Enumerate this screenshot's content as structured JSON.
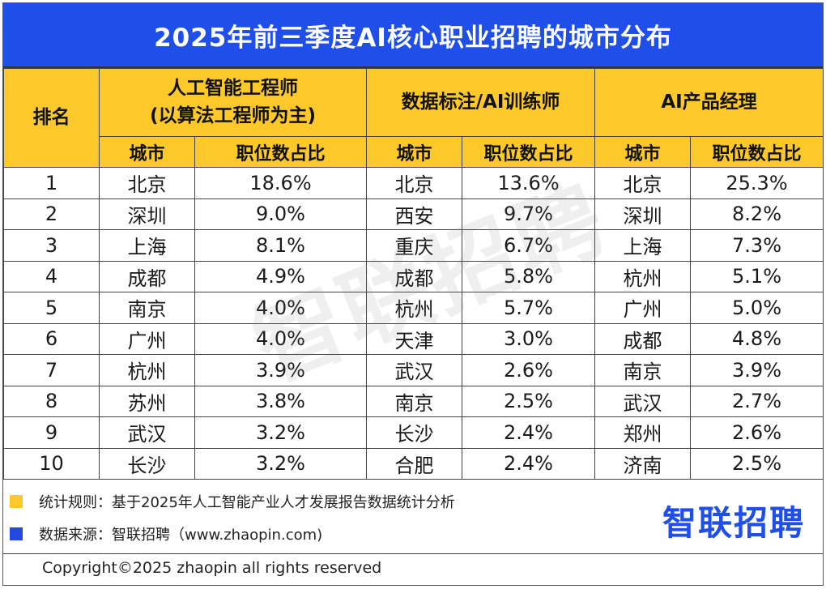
{
  "title": "2025年前三季度AI核心职业招聘的城市分布",
  "header": {
    "rank": "排名",
    "group1": [
      "人工智能工程师",
      "(以算法工程师为主)"
    ],
    "group2": "数据标注/AI训练师",
    "group3": "AI产品经理",
    "city": "城市",
    "share": "职位数占比"
  },
  "rows": [
    {
      "rank": "1",
      "c1": "北京",
      "p1": "18.6%",
      "c2": "北京",
      "p2": "13.6%",
      "c3": "北京",
      "p3": "25.3%"
    },
    {
      "rank": "2",
      "c1": "深圳",
      "p1": "9.0%",
      "c2": "西安",
      "p2": "9.7%",
      "c3": "深圳",
      "p3": "8.2%"
    },
    {
      "rank": "3",
      "c1": "上海",
      "p1": "8.1%",
      "c2": "重庆",
      "p2": "6.7%",
      "c3": "上海",
      "p3": "7.3%"
    },
    {
      "rank": "4",
      "c1": "成都",
      "p1": "4.9%",
      "c2": "成都",
      "p2": "5.8%",
      "c3": "杭州",
      "p3": "5.1%"
    },
    {
      "rank": "5",
      "c1": "南京",
      "p1": "4.0%",
      "c2": "杭州",
      "p2": "5.7%",
      "c3": "广州",
      "p3": "5.0%"
    },
    {
      "rank": "6",
      "c1": "广州",
      "p1": "4.0%",
      "c2": "天津",
      "p2": "3.0%",
      "c3": "成都",
      "p3": "4.8%"
    },
    {
      "rank": "7",
      "c1": "杭州",
      "p1": "3.9%",
      "c2": "武汉",
      "p2": "2.6%",
      "c3": "南京",
      "p3": "3.9%"
    },
    {
      "rank": "8",
      "c1": "苏州",
      "p1": "3.8%",
      "c2": "南京",
      "p2": "2.5%",
      "c3": "武汉",
      "p3": "2.7%"
    },
    {
      "rank": "9",
      "c1": "武汉",
      "p1": "3.2%",
      "c2": "长沙",
      "p2": "2.4%",
      "c3": "郑州",
      "p3": "2.6%"
    },
    {
      "rank": "10",
      "c1": "长沙",
      "p1": "3.2%",
      "c2": "合肥",
      "p2": "2.4%",
      "c3": "济南",
      "p3": "2.5%"
    }
  ],
  "watermark": "智联招聘",
  "notes": {
    "rule": "统计规则：基于2025年人工智能产业人才发展报告数据统计分析",
    "source": "数据来源：智联招聘（www.zhaopin.com)"
  },
  "brand": "智联招聘",
  "copyright": "Copyright©2025 zhaopin all rights reserved",
  "colors": {
    "title_bg": "#1f4ee8",
    "header_bg": "#fdc82a",
    "brand": "#1f4ee8"
  }
}
